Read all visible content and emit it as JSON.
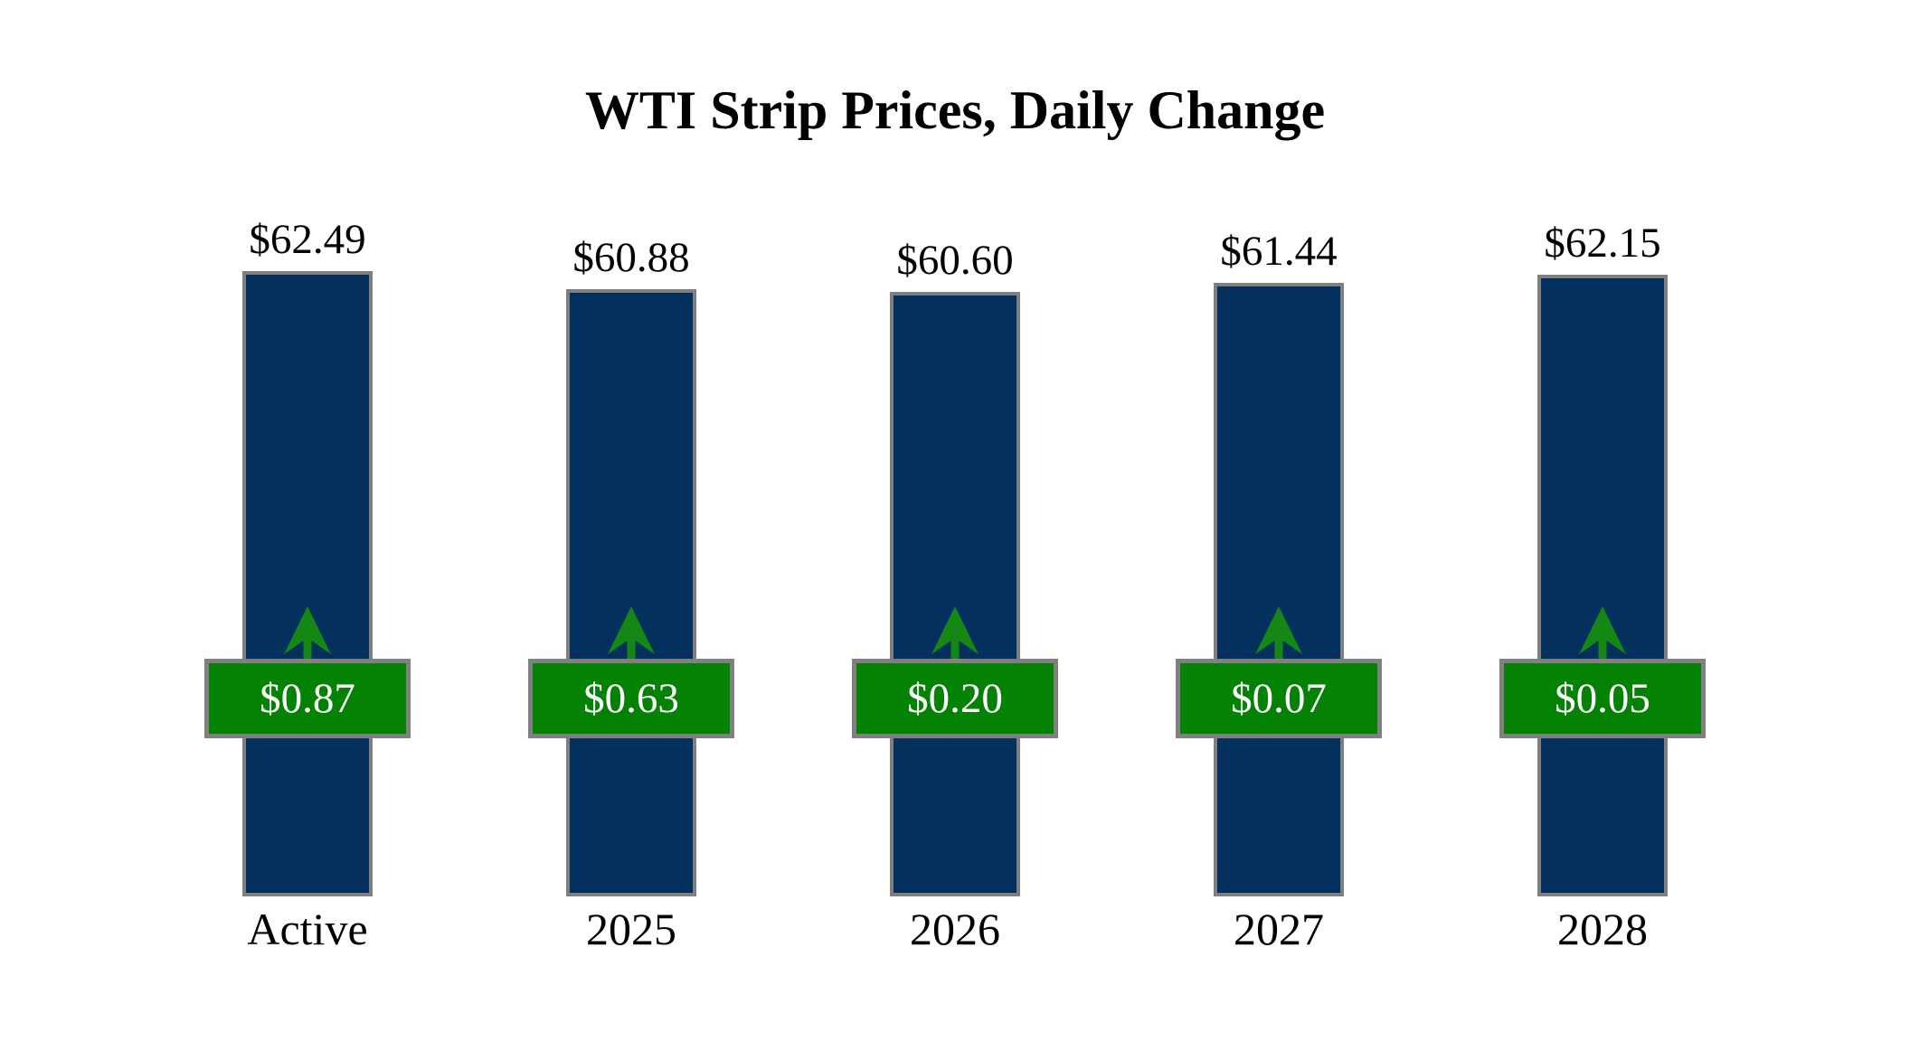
{
  "chart_data": {
    "type": "bar",
    "title": "WTI Strip Prices, Daily Change",
    "categories": [
      "Active",
      "2025",
      "2026",
      "2027",
      "2028"
    ],
    "series": [
      {
        "name": "Strip Price",
        "values": [
          62.49,
          60.88,
          60.6,
          61.44,
          62.15
        ]
      },
      {
        "name": "Daily Change",
        "values": [
          0.87,
          0.63,
          0.2,
          0.07,
          0.05
        ]
      }
    ],
    "price_labels": [
      "$62.49",
      "$60.88",
      "$60.60",
      "$61.44",
      "$62.15"
    ],
    "change_labels": [
      "$0.87",
      "$0.63",
      "$0.20",
      "$0.07",
      "$0.05"
    ],
    "change_direction": "up",
    "xlabel": "",
    "ylabel": "",
    "axis_hidden": true,
    "grid": false,
    "legend": "none"
  },
  "colors": {
    "background": "#FFFFFF",
    "bar_fill": "#04305E",
    "bar_border": "#7F7F7F",
    "badge_fill": "#048204",
    "badge_border": "#808080",
    "badge_text": "#FFFFFF",
    "arrow_green": "#148714",
    "label_text": "#000000"
  }
}
